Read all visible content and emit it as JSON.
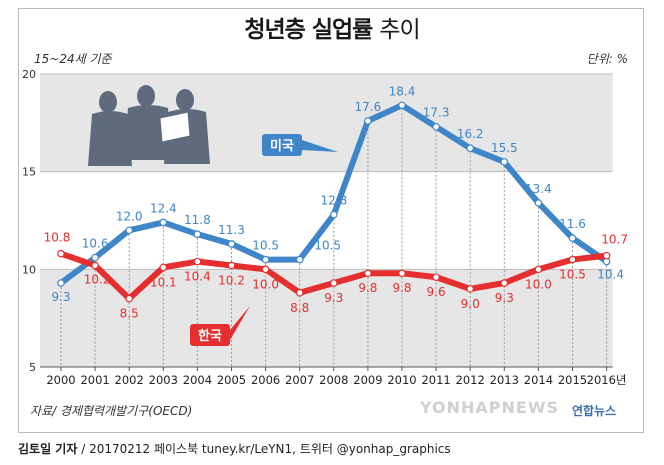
{
  "title_main": "청년층 실업률",
  "title_sub": "추이",
  "subnote": "15~24세 기준",
  "unit": "단위: %",
  "source": "자료/ 경제협력개발기구(OECD)",
  "credit_author": "김토일 기자",
  "credit_rest": " / 20170212 페이스북 tuney.kr/LeYN1, 트위터 @yonhap_graphics",
  "watermark": "YONHAPNEWS",
  "logo_text": "연합뉴스",
  "colors": {
    "us": "#3f86c8",
    "kr": "#e62e2e",
    "band": "#e6e6e6"
  },
  "chart_data": {
    "type": "line",
    "categories": [
      "2000",
      "2001",
      "2002",
      "2003",
      "2004",
      "2005",
      "2006",
      "2007",
      "2008",
      "2009",
      "2010",
      "2011",
      "2012",
      "2013",
      "2014",
      "2015",
      "2016년"
    ],
    "ylim": [
      5,
      20
    ],
    "yticks": [
      5,
      10,
      15,
      20
    ],
    "series": [
      {
        "name": "미국",
        "values": [
          9.3,
          10.6,
          12.0,
          12.4,
          11.8,
          11.3,
          10.5,
          10.5,
          12.8,
          17.6,
          18.4,
          17.3,
          16.2,
          15.5,
          13.4,
          11.6,
          10.4
        ]
      },
      {
        "name": "한국",
        "values": [
          10.8,
          10.2,
          8.5,
          10.1,
          10.4,
          10.2,
          10.0,
          8.8,
          9.3,
          9.8,
          9.8,
          9.6,
          9.0,
          9.3,
          10.0,
          10.5,
          10.7
        ]
      }
    ],
    "us_labels": [
      "9.3",
      "10.6",
      "12.0",
      "12.4",
      "11.8",
      "11.3",
      "10.5",
      "12.8",
      "17.6",
      "18.4",
      "17.3",
      "16.2",
      "15.5",
      "13.4",
      "11.6",
      "10.4"
    ],
    "kr_labels": [
      "10.8",
      "10.2",
      "8.5",
      "10.1",
      "10.4",
      "10.2",
      "10.0",
      "8.8",
      "9.3",
      "9.8",
      "9.8",
      "9.6",
      "9.0",
      "9.3",
      "10.0",
      "10.5",
      "10.7"
    ],
    "us_extra_label": "10.5",
    "grid": true,
    "legend": "inline"
  }
}
